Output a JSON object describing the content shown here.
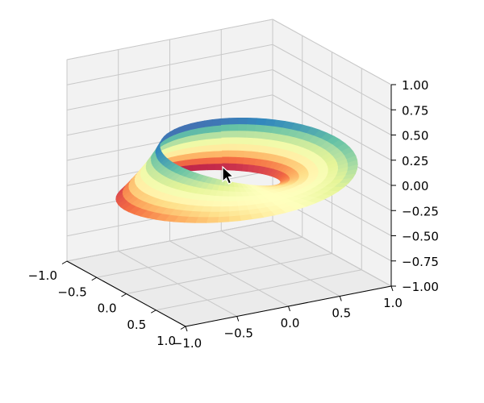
{
  "chart_data": {
    "type": "surface",
    "surface": "mobius-strip",
    "colormap": "Spectral",
    "colormap_colors": [
      "#9e0142",
      "#d53e4f",
      "#f46d43",
      "#fdae61",
      "#fee08b",
      "#ffffbf",
      "#e6f598",
      "#abdda4",
      "#66c2a5",
      "#3288bd",
      "#5e4fa2"
    ],
    "x_ticks": [
      "−1.0",
      "−0.5",
      "0.0",
      "0.5",
      "1.0"
    ],
    "y_ticks": [
      "−1.0",
      "−0.5",
      "0.0",
      "0.5",
      "1.0"
    ],
    "z_ticks": [
      "1.00",
      "0.75",
      "0.50",
      "0.25",
      "0.00",
      "−0.25",
      "−0.50",
      "−0.75",
      "−1.00"
    ],
    "xlim": [
      -1.0,
      1.0
    ],
    "ylim": [
      -1.0,
      1.0
    ],
    "zlim": [
      -1.0,
      1.0
    ],
    "grid": true
  },
  "cursor": {
    "icon": "arrow-cursor-icon"
  }
}
